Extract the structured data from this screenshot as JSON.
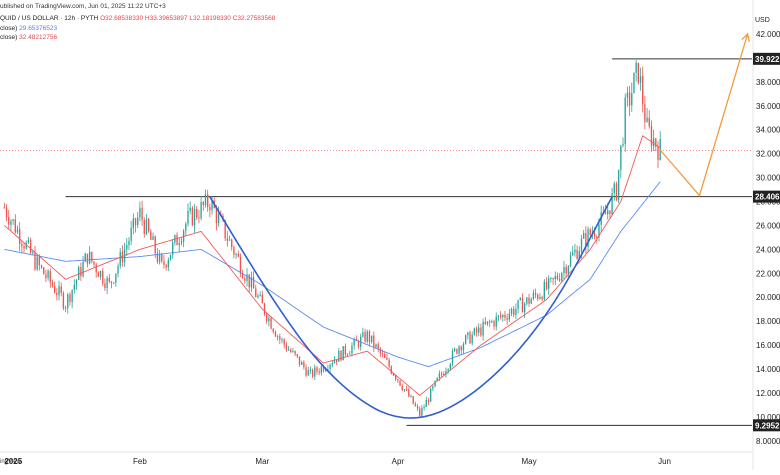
{
  "header": {
    "published": "ublished on TradingView.com, Jun 01, 2025 11:22 UTC+3",
    "symbol": "QUID / US DOLLAR · 12h · PYTH",
    "ohlc": "O32.68538330  H33.39653897  L32.18198330  C32.27583568",
    "ma1_label": "close)",
    "ma1_value": "29.65376523",
    "ma2_label": "close)",
    "ma2_value": "32.48212756"
  },
  "footer": {
    "brand": "ingView"
  },
  "colors": {
    "up": "#26a69a",
    "down": "#ef5350",
    "ma_fast": "#f15a5a",
    "ma_slow": "#5b8def",
    "cup_curve": "#2f5fd0",
    "projection": "#f39a3c",
    "level_line": "#333333",
    "last_price": "#ef5350"
  },
  "chart_data": {
    "type": "candlestick",
    "title": "QUID / US DOLLAR · 12h · PYTH",
    "ylabel": "USD",
    "ylim": [
      7.4,
      43
    ],
    "y_ticks": [
      "8.00000",
      "10.0000",
      "12.0000",
      "14.0000",
      "16.0000",
      "18.0000",
      "20.0000",
      "22.0000",
      "24.0000",
      "26.0000",
      "28.0000",
      "30.0000",
      "32.0000",
      "34.0000",
      "36.0000",
      "38.0000",
      "40.0000",
      "42.0000"
    ],
    "x_ticks": [
      {
        "label": "2025",
        "date": "2025-01-01"
      },
      {
        "label": "Feb",
        "date": "2025-02-01"
      },
      {
        "label": "Mar",
        "date": "2025-03-01"
      },
      {
        "label": "Apr",
        "date": "2025-04-01"
      },
      {
        "label": "May",
        "date": "2025-05-01"
      },
      {
        "label": "Jun",
        "date": "2025-06-01"
      }
    ],
    "x_range": [
      "2024-12-31",
      "2025-06-21"
    ],
    "grid": false,
    "price_levels": [
      {
        "label": "39.922",
        "value": 39.922,
        "from": "2025-05-20",
        "to": "2025-06-21"
      },
      {
        "label": "28.406",
        "value": 28.406,
        "from": "2025-01-15",
        "to": "2025-06-21"
      },
      {
        "label": "9.2952",
        "value": 9.2952,
        "from": "2025-04-03",
        "to": "2025-06-21"
      }
    ],
    "last_price": 32.27583568,
    "candle_anchors": [
      {
        "date": "2025-01-01",
        "close": 27.5
      },
      {
        "date": "2025-01-08",
        "close": 23.0
      },
      {
        "date": "2025-01-15",
        "close": 19.5
      },
      {
        "date": "2025-01-20",
        "close": 23.5
      },
      {
        "date": "2025-01-25",
        "close": 21.0
      },
      {
        "date": "2025-02-01",
        "close": 27.0
      },
      {
        "date": "2025-02-06",
        "close": 22.5
      },
      {
        "date": "2025-02-12",
        "close": 26.5
      },
      {
        "date": "2025-02-17",
        "close": 28.0
      },
      {
        "date": "2025-02-25",
        "close": 22.0
      },
      {
        "date": "2025-03-05",
        "close": 16.5
      },
      {
        "date": "2025-03-12",
        "close": 13.5
      },
      {
        "date": "2025-03-20",
        "close": 15.5
      },
      {
        "date": "2025-03-25",
        "close": 16.8
      },
      {
        "date": "2025-04-01",
        "close": 13.2
      },
      {
        "date": "2025-04-06",
        "close": 10.2
      },
      {
        "date": "2025-04-10",
        "close": 13.0
      },
      {
        "date": "2025-04-15",
        "close": 16.0
      },
      {
        "date": "2025-04-22",
        "close": 17.8
      },
      {
        "date": "2025-04-30",
        "close": 19.5
      },
      {
        "date": "2025-05-06",
        "close": 21.0
      },
      {
        "date": "2025-05-13",
        "close": 24.5
      },
      {
        "date": "2025-05-18",
        "close": 26.5
      },
      {
        "date": "2025-05-21",
        "close": 29.0
      },
      {
        "date": "2025-05-23",
        "close": 35.5
      },
      {
        "date": "2025-05-26",
        "close": 39.0
      },
      {
        "date": "2025-05-28",
        "close": 34.0
      },
      {
        "date": "2025-05-31",
        "close": 32.3
      }
    ],
    "ma_slow_anchors": [
      {
        "date": "2025-01-01",
        "value": 24.0
      },
      {
        "date": "2025-01-15",
        "value": 23.0
      },
      {
        "date": "2025-02-01",
        "value": 23.4
      },
      {
        "date": "2025-02-15",
        "value": 24.0
      },
      {
        "date": "2025-03-01",
        "value": 21.0
      },
      {
        "date": "2025-03-15",
        "value": 17.5
      },
      {
        "date": "2025-04-01",
        "value": 15.0
      },
      {
        "date": "2025-04-08",
        "value": 14.2
      },
      {
        "date": "2025-04-20",
        "value": 15.8
      },
      {
        "date": "2025-05-05",
        "value": 18.5
      },
      {
        "date": "2025-05-15",
        "value": 21.5
      },
      {
        "date": "2025-05-22",
        "value": 25.5
      },
      {
        "date": "2025-05-31",
        "value": 29.65
      }
    ],
    "ma_fast_anchors": [
      {
        "date": "2025-01-01",
        "value": 26.0
      },
      {
        "date": "2025-01-15",
        "value": 21.5
      },
      {
        "date": "2025-02-01",
        "value": 24.0
      },
      {
        "date": "2025-02-15",
        "value": 25.5
      },
      {
        "date": "2025-03-01",
        "value": 19.0
      },
      {
        "date": "2025-03-15",
        "value": 14.5
      },
      {
        "date": "2025-03-25",
        "value": 15.5
      },
      {
        "date": "2025-04-06",
        "value": 11.8
      },
      {
        "date": "2025-04-20",
        "value": 16.0
      },
      {
        "date": "2025-05-05",
        "value": 19.8
      },
      {
        "date": "2025-05-15",
        "value": 24.0
      },
      {
        "date": "2025-05-22",
        "value": 28.0
      },
      {
        "date": "2025-05-27",
        "value": 33.5
      },
      {
        "date": "2025-05-31",
        "value": 32.48
      }
    ],
    "cup_curve": [
      {
        "date": "2025-02-17",
        "value": 28.4
      },
      {
        "date": "2025-03-05",
        "value": 18.5
      },
      {
        "date": "2025-03-20",
        "value": 12.0
      },
      {
        "date": "2025-04-03",
        "value": 9.3
      },
      {
        "date": "2025-04-18",
        "value": 11.5
      },
      {
        "date": "2025-05-05",
        "value": 18.0
      },
      {
        "date": "2025-05-20",
        "value": 28.4
      }
    ],
    "projection_path": [
      {
        "date": "2025-05-31",
        "value": 32.3
      },
      {
        "date": "2025-06-09",
        "value": 28.5
      },
      {
        "date": "2025-06-20",
        "value": 42.0
      }
    ]
  }
}
